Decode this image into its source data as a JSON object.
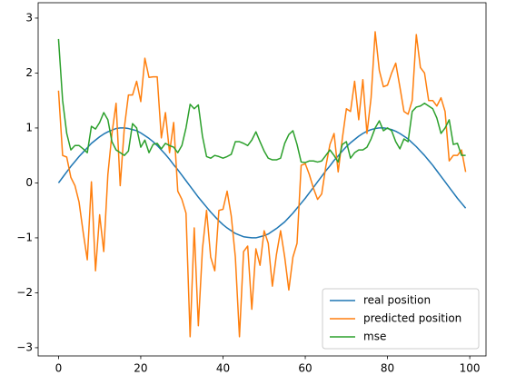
{
  "chart_data": {
    "type": "line",
    "x": [
      0,
      1,
      2,
      3,
      4,
      5,
      6,
      7,
      8,
      9,
      10,
      11,
      12,
      13,
      14,
      15,
      16,
      17,
      18,
      19,
      20,
      21,
      22,
      23,
      24,
      25,
      26,
      27,
      28,
      29,
      30,
      31,
      32,
      33,
      34,
      35,
      36,
      37,
      38,
      39,
      40,
      41,
      42,
      43,
      44,
      45,
      46,
      47,
      48,
      49,
      50,
      51,
      52,
      53,
      54,
      55,
      56,
      57,
      58,
      59,
      60,
      61,
      62,
      63,
      64,
      65,
      66,
      67,
      68,
      69,
      70,
      71,
      72,
      73,
      74,
      75,
      76,
      77,
      78,
      79,
      80,
      81,
      82,
      83,
      84,
      85,
      86,
      87,
      88,
      89,
      90,
      91,
      92,
      93,
      94,
      95,
      96,
      97,
      98,
      99
    ],
    "series": [
      {
        "name": "real position",
        "color": "#1f77b4",
        "values": [
          0,
          0.1,
          0.2,
          0.3,
          0.39,
          0.48,
          0.56,
          0.64,
          0.72,
          0.78,
          0.84,
          0.89,
          0.93,
          0.96,
          0.99,
          1.0,
          1.0,
          0.99,
          0.97,
          0.95,
          0.91,
          0.86,
          0.81,
          0.75,
          0.68,
          0.6,
          0.52,
          0.43,
          0.33,
          0.24,
          0.14,
          0.04,
          -0.06,
          -0.16,
          -0.26,
          -0.35,
          -0.44,
          -0.53,
          -0.61,
          -0.69,
          -0.76,
          -0.82,
          -0.87,
          -0.92,
          -0.95,
          -0.98,
          -0.99,
          -1.0,
          -1.0,
          -0.98,
          -0.96,
          -0.93,
          -0.88,
          -0.83,
          -0.77,
          -0.71,
          -0.63,
          -0.55,
          -0.46,
          -0.37,
          -0.28,
          -0.18,
          -0.08,
          0.02,
          0.12,
          0.22,
          0.31,
          0.41,
          0.49,
          0.58,
          0.66,
          0.73,
          0.79,
          0.85,
          0.9,
          0.94,
          0.97,
          0.99,
          1.0,
          1.0,
          0.99,
          0.97,
          0.94,
          0.9,
          0.85,
          0.8,
          0.73,
          0.66,
          0.58,
          0.5,
          0.41,
          0.32,
          0.22,
          0.12,
          0.02,
          -0.08,
          -0.18,
          -0.28,
          -0.37,
          -0.46
        ]
      },
      {
        "name": "predicted position",
        "color": "#ff7f0e",
        "values": [
          1.68,
          0.5,
          0.47,
          0.1,
          -0.05,
          -0.35,
          -0.9,
          -1.4,
          0.02,
          -1.6,
          -0.58,
          -1.25,
          0.15,
          0.9,
          1.45,
          -0.05,
          1.0,
          1.6,
          1.6,
          1.85,
          1.48,
          2.27,
          1.92,
          1.93,
          1.93,
          0.82,
          1.28,
          0.55,
          1.1,
          -0.15,
          -0.3,
          -0.55,
          -2.8,
          -0.82,
          -2.6,
          -1.2,
          -0.5,
          -1.35,
          -1.6,
          -0.5,
          -0.48,
          -0.15,
          -0.6,
          -1.35,
          -2.8,
          -1.25,
          -1.15,
          -2.3,
          -1.2,
          -1.5,
          -0.87,
          -1.1,
          -1.88,
          -1.3,
          -0.87,
          -1.35,
          -1.95,
          -1.35,
          -1.1,
          0.32,
          0.35,
          0.15,
          -0.1,
          -0.3,
          -0.2,
          0.3,
          0.7,
          0.9,
          0.2,
          0.8,
          1.35,
          1.3,
          1.85,
          1.15,
          1.88,
          0.9,
          1.55,
          2.75,
          2.05,
          1.75,
          1.78,
          2.0,
          2.18,
          1.75,
          1.3,
          1.25,
          1.5,
          2.7,
          2.1,
          2.0,
          1.5,
          1.5,
          1.4,
          1.55,
          1.3,
          0.4,
          0.5,
          0.5,
          0.6,
          0.2
        ]
      },
      {
        "name": "mse",
        "color": "#2ca02c",
        "values": [
          2.62,
          1.5,
          0.9,
          0.6,
          0.68,
          0.68,
          0.62,
          0.55,
          1.03,
          0.98,
          1.1,
          1.28,
          1.15,
          0.75,
          0.6,
          0.55,
          0.5,
          0.58,
          1.08,
          1.0,
          0.65,
          0.78,
          0.55,
          0.7,
          0.72,
          0.62,
          0.72,
          0.68,
          0.65,
          0.55,
          0.68,
          1.0,
          1.43,
          1.35,
          1.42,
          0.85,
          0.48,
          0.45,
          0.5,
          0.48,
          0.45,
          0.48,
          0.52,
          0.75,
          0.75,
          0.72,
          0.68,
          0.78,
          0.93,
          0.75,
          0.58,
          0.45,
          0.42,
          0.42,
          0.45,
          0.72,
          0.88,
          0.95,
          0.7,
          0.38,
          0.37,
          0.4,
          0.4,
          0.38,
          0.4,
          0.5,
          0.6,
          0.5,
          0.38,
          0.7,
          0.75,
          0.45,
          0.55,
          0.6,
          0.6,
          0.65,
          0.8,
          1.0,
          1.13,
          0.95,
          1.0,
          0.95,
          0.75,
          0.62,
          0.8,
          0.75,
          1.3,
          1.38,
          1.4,
          1.45,
          1.4,
          1.35,
          1.18,
          0.9,
          1.0,
          1.15,
          0.7,
          0.72,
          0.5,
          0.5
        ]
      }
    ],
    "xlim": [
      -4.95,
      103.95
    ],
    "xticks": [
      0,
      20,
      40,
      60,
      80,
      100
    ],
    "ylim": [
      -3.15,
      3.28
    ],
    "yticks": [
      {
        "value": -3,
        "label": "−3"
      },
      {
        "value": -2,
        "label": "−2"
      },
      {
        "value": -1,
        "label": "−1"
      },
      0,
      1,
      2,
      3
    ],
    "legend": "lower right"
  }
}
